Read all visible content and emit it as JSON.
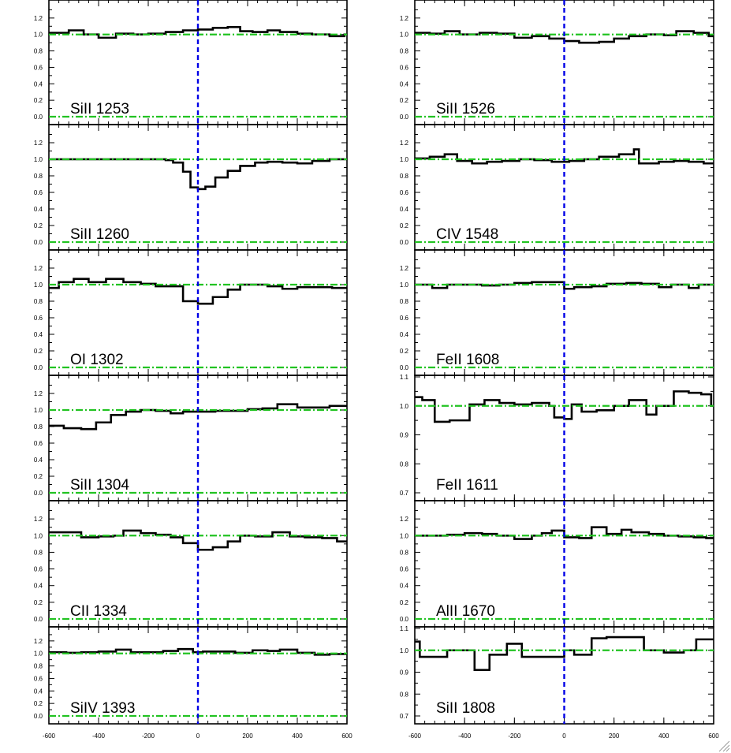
{
  "chart_data": [
    {
      "type": "line",
      "title": "SiII 1253",
      "column": "left",
      "ylim": [
        0.0,
        1.4
      ],
      "yticks": [
        "0.0",
        "0.2",
        "0.4",
        "0.6",
        "0.8",
        "1.0",
        "1.2"
      ],
      "continuum": 1.0,
      "xlim": [
        -600,
        600
      ],
      "x": [
        -600,
        -520,
        -460,
        -400,
        -330,
        -260,
        -200,
        -130,
        -60,
        0,
        60,
        120,
        170,
        220,
        280,
        330,
        400,
        460,
        530,
        590
      ],
      "y": [
        1.02,
        1.05,
        1.0,
        0.96,
        1.01,
        1.0,
        1.01,
        1.03,
        1.05,
        1.06,
        1.08,
        1.09,
        1.04,
        1.03,
        1.05,
        1.03,
        1.01,
        1.0,
        0.98,
        1.0
      ]
    },
    {
      "type": "line",
      "title": "SiII 1526",
      "column": "right",
      "ylim": [
        0.0,
        1.4
      ],
      "yticks": [
        "0.0",
        "0.2",
        "0.4",
        "0.6",
        "0.8",
        "1.0",
        "1.2"
      ],
      "continuum": 1.0,
      "xlim": [
        -600,
        600
      ],
      "x": [
        -600,
        -540,
        -480,
        -420,
        -340,
        -270,
        -200,
        -130,
        -60,
        0,
        60,
        140,
        200,
        260,
        330,
        400,
        450,
        520,
        580
      ],
      "y": [
        1.02,
        1.01,
        1.04,
        1.0,
        1.02,
        1.01,
        0.96,
        0.98,
        0.95,
        0.92,
        0.9,
        0.91,
        0.95,
        0.98,
        1.0,
        0.99,
        1.04,
        1.02,
        0.98
      ]
    },
    {
      "type": "line",
      "title": "SiII 1260",
      "column": "left",
      "ylim": [
        0.0,
        1.4
      ],
      "yticks": [
        "0.0",
        "0.2",
        "0.4",
        "0.6",
        "0.8",
        "1.0",
        "1.2"
      ],
      "continuum": 1.0,
      "xlim": [
        -600,
        600
      ],
      "x": [
        -600,
        -530,
        -460,
        -400,
        -330,
        -260,
        -200,
        -130,
        -100,
        -60,
        -30,
        0,
        30,
        70,
        120,
        170,
        230,
        280,
        340,
        400,
        460,
        530
      ],
      "y": [
        1.0,
        1.0,
        1.0,
        1.0,
        1.0,
        1.0,
        1.0,
        0.99,
        0.96,
        0.85,
        0.66,
        0.64,
        0.67,
        0.78,
        0.86,
        0.92,
        0.96,
        0.97,
        0.96,
        0.95,
        0.98,
        1.0
      ]
    },
    {
      "type": "line",
      "title": "CIV 1548",
      "column": "right",
      "ylim": [
        0.0,
        1.4
      ],
      "yticks": [
        "0.0",
        "0.2",
        "0.4",
        "0.6",
        "0.8",
        "1.0",
        "1.2"
      ],
      "continuum": 1.0,
      "xlim": [
        -600,
        600
      ],
      "x": [
        -600,
        -540,
        -480,
        -430,
        -370,
        -310,
        -250,
        -180,
        -120,
        -50,
        20,
        80,
        140,
        220,
        280,
        300,
        380,
        440,
        500,
        560
      ],
      "y": [
        1.01,
        1.03,
        1.06,
        0.98,
        0.95,
        0.97,
        0.98,
        1.0,
        0.99,
        0.97,
        0.98,
        1.0,
        1.03,
        1.06,
        1.12,
        0.95,
        0.97,
        0.98,
        0.97,
        0.95
      ]
    },
    {
      "type": "line",
      "title": "OI 1302",
      "column": "left",
      "ylim": [
        0.0,
        1.4
      ],
      "yticks": [
        "0.0",
        "0.2",
        "0.4",
        "0.6",
        "0.8",
        "1.0",
        "1.2"
      ],
      "continuum": 1.0,
      "xlim": [
        -600,
        600
      ],
      "x": [
        -600,
        -560,
        -500,
        -440,
        -370,
        -300,
        -230,
        -170,
        -100,
        -60,
        0,
        60,
        120,
        170,
        220,
        280,
        340,
        400,
        470,
        540
      ],
      "y": [
        0.96,
        1.03,
        1.07,
        1.03,
        1.07,
        1.03,
        1.01,
        0.98,
        0.98,
        0.8,
        0.77,
        0.85,
        0.94,
        1.0,
        1.0,
        0.98,
        0.95,
        0.97,
        0.97,
        0.96
      ]
    },
    {
      "type": "line",
      "title": "FeII 1608",
      "column": "right",
      "ylim": [
        0.0,
        1.4
      ],
      "yticks": [
        "0.0",
        "0.2",
        "0.4",
        "0.6",
        "0.8",
        "1.0",
        "1.2"
      ],
      "continuum": 1.0,
      "xlim": [
        -600,
        600
      ],
      "x": [
        -600,
        -530,
        -470,
        -400,
        -330,
        -260,
        -200,
        -130,
        -60,
        0,
        40,
        110,
        170,
        250,
        310,
        380,
        430,
        500,
        540
      ],
      "y": [
        1.0,
        0.96,
        1.0,
        1.0,
        0.99,
        1.0,
        1.02,
        1.03,
        1.03,
        0.95,
        0.97,
        0.98,
        1.01,
        1.02,
        1.01,
        0.97,
        1.0,
        0.96,
        1.0
      ]
    },
    {
      "type": "line",
      "title": "SiII 1304",
      "column": "left",
      "ylim": [
        0.0,
        1.4
      ],
      "yticks": [
        "0.0",
        "0.2",
        "0.4",
        "0.6",
        "0.8",
        "1.0",
        "1.2"
      ],
      "continuum": 1.0,
      "xlim": [
        -600,
        600
      ],
      "x": [
        -600,
        -540,
        -470,
        -410,
        -350,
        -290,
        -230,
        -170,
        -110,
        -60,
        0,
        70,
        130,
        200,
        260,
        320,
        400,
        460,
        530
      ],
      "y": [
        0.81,
        0.78,
        0.77,
        0.85,
        0.94,
        0.98,
        1.0,
        0.99,
        0.96,
        0.98,
        0.98,
        0.99,
        0.99,
        1.01,
        1.02,
        1.07,
        1.03,
        1.03,
        1.05
      ]
    },
    {
      "type": "line",
      "title": "FeII 1611",
      "column": "right",
      "ylim": [
        0.7,
        1.1
      ],
      "yticks": [
        "0.7",
        "0.8",
        "0.9",
        "1.0",
        "1.1"
      ],
      "continuum": 1.0,
      "xlim": [
        -600,
        600
      ],
      "x": [
        -600,
        -570,
        -520,
        -460,
        -380,
        -320,
        -260,
        -200,
        -130,
        -60,
        -40,
        0,
        30,
        70,
        130,
        200,
        260,
        330,
        370,
        440,
        500,
        550,
        590
      ],
      "y": [
        1.03,
        1.02,
        0.945,
        0.95,
        1.005,
        1.02,
        1.01,
        1.005,
        1.01,
        1.0,
        0.96,
        0.955,
        1.005,
        0.98,
        0.985,
        1.0,
        1.02,
        0.97,
        1.0,
        1.05,
        1.045,
        1.04,
        1.0
      ]
    },
    {
      "type": "line",
      "title": "CII 1334",
      "column": "left",
      "ylim": [
        0.0,
        1.4
      ],
      "yticks": [
        "0.0",
        "0.2",
        "0.4",
        "0.6",
        "0.8",
        "1.0",
        "1.2"
      ],
      "continuum": 1.0,
      "xlim": [
        -600,
        600
      ],
      "x": [
        -600,
        -540,
        -470,
        -400,
        -340,
        -300,
        -230,
        -170,
        -110,
        -60,
        0,
        60,
        120,
        170,
        230,
        300,
        370,
        430,
        500,
        560
      ],
      "y": [
        1.04,
        1.04,
        0.98,
        0.99,
        1.0,
        1.06,
        1.03,
        1.01,
        0.98,
        0.91,
        0.83,
        0.86,
        0.93,
        1.0,
        0.99,
        1.04,
        0.99,
        0.98,
        0.97,
        0.93
      ]
    },
    {
      "type": "line",
      "title": "AlII 1670",
      "column": "right",
      "ylim": [
        0.0,
        1.4
      ],
      "yticks": [
        "0.0",
        "0.2",
        "0.4",
        "0.6",
        "0.8",
        "1.0",
        "1.2"
      ],
      "continuum": 1.0,
      "xlim": [
        -600,
        600
      ],
      "x": [
        -600,
        -530,
        -470,
        -400,
        -330,
        -270,
        -200,
        -130,
        -90,
        -50,
        0,
        60,
        110,
        170,
        230,
        270,
        340,
        400,
        460,
        520,
        570
      ],
      "y": [
        1.0,
        1.0,
        1.01,
        1.03,
        1.02,
        1.0,
        0.96,
        1.0,
        1.03,
        1.06,
        0.98,
        0.97,
        1.1,
        1.02,
        1.07,
        1.04,
        1.02,
        1.0,
        0.99,
        0.98,
        0.97
      ]
    },
    {
      "type": "line",
      "title": "SiIV 1393",
      "column": "left",
      "ylim": [
        0.0,
        1.4
      ],
      "yticks": [
        "0.0",
        "0.2",
        "0.4",
        "0.6",
        "0.8",
        "1.0",
        "1.2"
      ],
      "continuum": 1.0,
      "xlim": [
        -600,
        600
      ],
      "x": [
        -600,
        -530,
        -470,
        -400,
        -330,
        -270,
        -200,
        -140,
        -80,
        -20,
        20,
        90,
        150,
        220,
        280,
        330,
        400,
        470,
        530
      ],
      "y": [
        1.02,
        1.01,
        1.02,
        1.03,
        1.06,
        1.02,
        1.02,
        1.04,
        1.07,
        1.02,
        1.03,
        1.03,
        1.01,
        1.05,
        1.04,
        1.06,
        1.01,
        0.98,
        0.99
      ]
    },
    {
      "type": "line",
      "title": "SiII 1808",
      "column": "right",
      "ylim": [
        0.7,
        1.1
      ],
      "yticks": [
        "0.7",
        "0.8",
        "0.9",
        "1.0",
        "1.1"
      ],
      "continuum": 1.0,
      "xlim": [
        -600,
        600
      ],
      "x": [
        -600,
        -580,
        -530,
        -470,
        -420,
        -360,
        -300,
        -230,
        -170,
        -100,
        -50,
        0,
        40,
        110,
        170,
        230,
        320,
        400,
        480,
        530,
        570,
        590
      ],
      "y": [
        1.04,
        0.97,
        0.97,
        1.0,
        1.0,
        0.91,
        0.98,
        1.03,
        0.97,
        0.97,
        0.97,
        1.0,
        0.98,
        1.055,
        1.06,
        1.06,
        1.0,
        0.99,
        1.0,
        1.05,
        1.05,
        1.05
      ]
    }
  ],
  "x_tick_labels": [
    "-600",
    "-400",
    "-200",
    "0",
    "200",
    "400",
    "600"
  ],
  "colors": {
    "spectrum": "#000000",
    "continuum": "#22c322",
    "zero_velocity": "#0000e6"
  }
}
